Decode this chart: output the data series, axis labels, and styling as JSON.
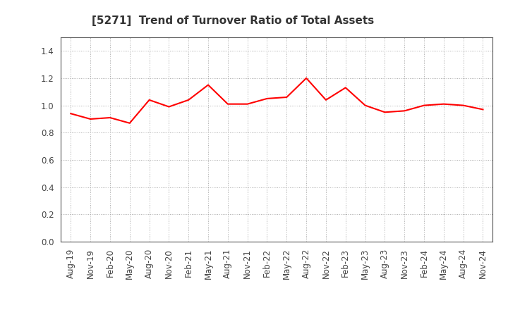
{
  "title": "[5271]  Trend of Turnover Ratio of Total Assets",
  "x_labels": [
    "Aug-19",
    "Nov-19",
    "Feb-20",
    "May-20",
    "Aug-20",
    "Nov-20",
    "Feb-21",
    "May-21",
    "Aug-21",
    "Nov-21",
    "Feb-22",
    "May-22",
    "Aug-22",
    "Nov-22",
    "Feb-23",
    "May-23",
    "Aug-23",
    "Nov-23",
    "Feb-24",
    "May-24",
    "Aug-24",
    "Nov-24"
  ],
  "y_values": [
    0.94,
    0.9,
    0.91,
    0.87,
    1.04,
    0.99,
    1.04,
    1.15,
    1.01,
    1.01,
    1.05,
    1.06,
    1.2,
    1.04,
    1.13,
    1.0,
    0.95,
    0.96,
    1.0,
    1.01,
    1.0,
    0.97
  ],
  "line_color": "#FF0000",
  "line_width": 1.5,
  "ylim": [
    0.0,
    1.5
  ],
  "yticks": [
    0.0,
    0.2,
    0.4,
    0.6,
    0.8,
    1.0,
    1.2,
    1.4
  ],
  "grid_color": "#aaaaaa",
  "background_color": "#ffffff",
  "plot_bg_color": "#ffffff",
  "title_fontsize": 11,
  "tick_fontsize": 8.5,
  "title_color": "#333333",
  "spine_color": "#555555"
}
